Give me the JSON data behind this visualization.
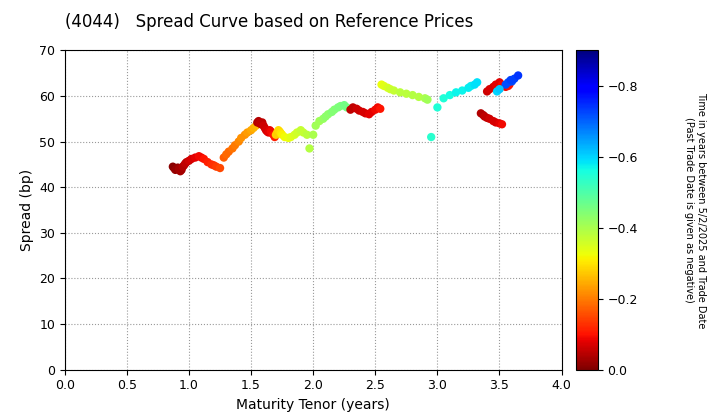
{
  "title": "(4044)   Spread Curve based on Reference Prices",
  "xlabel": "Maturity Tenor (years)",
  "ylabel": "Spread (bp)",
  "colorbar_label_line1": "Time in years between 5/2/2025 and Trade Date",
  "colorbar_label_line2": "(Past Trade Date is given as negative)",
  "xlim": [
    0.0,
    4.0
  ],
  "ylim": [
    0,
    70
  ],
  "xticks": [
    0.0,
    0.5,
    1.0,
    1.5,
    2.0,
    2.5,
    3.0,
    3.5,
    4.0
  ],
  "yticks": [
    0,
    10,
    20,
    30,
    40,
    50,
    60,
    70
  ],
  "cmap": "jet",
  "vmin": -0.9,
  "vmax": 0.0,
  "colorbar_ticks": [
    0.0,
    -0.2,
    -0.4,
    -0.6,
    -0.8
  ],
  "points": [
    [
      0.87,
      44.5,
      -0.01
    ],
    [
      0.88,
      44.2,
      -0.01
    ],
    [
      0.89,
      43.8,
      -0.02
    ],
    [
      0.9,
      44.0,
      -0.02
    ],
    [
      0.91,
      44.3,
      -0.02
    ],
    [
      0.92,
      44.0,
      -0.03
    ],
    [
      0.93,
      43.5,
      -0.03
    ],
    [
      0.94,
      43.8,
      -0.03
    ],
    [
      0.95,
      44.5,
      -0.04
    ],
    [
      0.96,
      44.8,
      -0.04
    ],
    [
      0.97,
      45.2,
      -0.05
    ],
    [
      0.98,
      45.5,
      -0.05
    ],
    [
      1.0,
      45.8,
      -0.06
    ],
    [
      1.02,
      46.2,
      -0.07
    ],
    [
      1.05,
      46.5,
      -0.08
    ],
    [
      1.08,
      46.8,
      -0.09
    ],
    [
      1.1,
      46.5,
      -0.09
    ],
    [
      1.12,
      46.2,
      -0.1
    ],
    [
      1.15,
      45.5,
      -0.11
    ],
    [
      1.18,
      45.0,
      -0.12
    ],
    [
      1.2,
      44.8,
      -0.13
    ],
    [
      1.22,
      44.5,
      -0.14
    ],
    [
      1.25,
      44.2,
      -0.15
    ],
    [
      1.28,
      46.5,
      -0.17
    ],
    [
      1.3,
      47.2,
      -0.18
    ],
    [
      1.32,
      47.8,
      -0.18
    ],
    [
      1.35,
      48.5,
      -0.19
    ],
    [
      1.37,
      49.2,
      -0.2
    ],
    [
      1.4,
      50.0,
      -0.21
    ],
    [
      1.42,
      50.8,
      -0.22
    ],
    [
      1.45,
      51.5,
      -0.22
    ],
    [
      1.47,
      52.0,
      -0.23
    ],
    [
      1.5,
      52.5,
      -0.24
    ],
    [
      1.52,
      53.0,
      -0.25
    ],
    [
      1.54,
      53.5,
      -0.26
    ],
    [
      1.55,
      54.2,
      -0.04
    ],
    [
      1.56,
      54.5,
      -0.04
    ],
    [
      1.57,
      54.0,
      -0.05
    ],
    [
      1.58,
      53.8,
      -0.05
    ],
    [
      1.59,
      54.2,
      -0.05
    ],
    [
      1.6,
      53.5,
      -0.06
    ],
    [
      1.61,
      53.0,
      -0.06
    ],
    [
      1.62,
      52.5,
      -0.07
    ],
    [
      1.63,
      52.2,
      -0.07
    ],
    [
      1.64,
      52.0,
      -0.08
    ],
    [
      1.65,
      52.5,
      -0.08
    ],
    [
      1.66,
      52.2,
      -0.09
    ],
    [
      1.67,
      51.8,
      -0.09
    ],
    [
      1.68,
      51.5,
      -0.1
    ],
    [
      1.69,
      51.0,
      -0.11
    ],
    [
      1.7,
      51.5,
      -0.28
    ],
    [
      1.71,
      52.0,
      -0.28
    ],
    [
      1.72,
      52.5,
      -0.29
    ],
    [
      1.73,
      52.2,
      -0.29
    ],
    [
      1.74,
      51.8,
      -0.3
    ],
    [
      1.75,
      51.5,
      -0.31
    ],
    [
      1.77,
      51.0,
      -0.32
    ],
    [
      1.8,
      50.8,
      -0.33
    ],
    [
      1.82,
      51.0,
      -0.34
    ],
    [
      1.85,
      51.5,
      -0.35
    ],
    [
      1.87,
      52.0,
      -0.36
    ],
    [
      1.9,
      52.5,
      -0.37
    ],
    [
      1.92,
      52.0,
      -0.37
    ],
    [
      1.95,
      51.5,
      -0.38
    ],
    [
      1.97,
      48.5,
      -0.39
    ],
    [
      2.0,
      51.5,
      -0.4
    ],
    [
      2.02,
      53.5,
      -0.41
    ],
    [
      2.05,
      54.5,
      -0.41
    ],
    [
      2.08,
      55.0,
      -0.42
    ],
    [
      2.1,
      55.5,
      -0.43
    ],
    [
      2.12,
      56.0,
      -0.43
    ],
    [
      2.15,
      56.5,
      -0.44
    ],
    [
      2.17,
      57.0,
      -0.44
    ],
    [
      2.2,
      57.5,
      -0.45
    ],
    [
      2.22,
      57.8,
      -0.45
    ],
    [
      2.25,
      58.0,
      -0.46
    ],
    [
      2.27,
      57.5,
      -0.46
    ],
    [
      2.3,
      57.0,
      -0.05
    ],
    [
      2.32,
      57.5,
      -0.05
    ],
    [
      2.35,
      57.2,
      -0.06
    ],
    [
      2.37,
      56.8,
      -0.06
    ],
    [
      2.4,
      56.5,
      -0.07
    ],
    [
      2.42,
      56.2,
      -0.07
    ],
    [
      2.45,
      56.0,
      -0.08
    ],
    [
      2.47,
      56.5,
      -0.08
    ],
    [
      2.5,
      57.0,
      -0.09
    ],
    [
      2.52,
      57.5,
      -0.09
    ],
    [
      2.54,
      57.2,
      -0.1
    ],
    [
      2.55,
      62.5,
      -0.33
    ],
    [
      2.57,
      62.2,
      -0.34
    ],
    [
      2.6,
      61.8,
      -0.35
    ],
    [
      2.62,
      61.5,
      -0.36
    ],
    [
      2.65,
      61.2,
      -0.37
    ],
    [
      2.7,
      60.8,
      -0.38
    ],
    [
      2.75,
      60.5,
      -0.38
    ],
    [
      2.8,
      60.2,
      -0.39
    ],
    [
      2.85,
      59.8,
      -0.39
    ],
    [
      2.9,
      59.5,
      -0.4
    ],
    [
      2.92,
      59.2,
      -0.41
    ],
    [
      2.95,
      51.0,
      -0.54
    ],
    [
      3.0,
      57.5,
      -0.55
    ],
    [
      3.05,
      59.5,
      -0.55
    ],
    [
      3.1,
      60.2,
      -0.56
    ],
    [
      3.15,
      60.8,
      -0.57
    ],
    [
      3.2,
      61.2,
      -0.57
    ],
    [
      3.25,
      61.8,
      -0.58
    ],
    [
      3.27,
      62.2,
      -0.58
    ],
    [
      3.3,
      62.5,
      -0.59
    ],
    [
      3.32,
      63.0,
      -0.59
    ],
    [
      3.35,
      56.2,
      -0.04
    ],
    [
      3.37,
      55.8,
      -0.04
    ],
    [
      3.38,
      55.5,
      -0.05
    ],
    [
      3.4,
      55.2,
      -0.05
    ],
    [
      3.42,
      55.0,
      -0.06
    ],
    [
      3.45,
      54.5,
      -0.07
    ],
    [
      3.47,
      54.2,
      -0.07
    ],
    [
      3.5,
      54.0,
      -0.08
    ],
    [
      3.52,
      53.8,
      -0.09
    ],
    [
      3.4,
      61.0,
      -0.06
    ],
    [
      3.42,
      61.5,
      -0.07
    ],
    [
      3.45,
      62.0,
      -0.07
    ],
    [
      3.47,
      62.5,
      -0.08
    ],
    [
      3.5,
      63.0,
      -0.08
    ],
    [
      3.52,
      62.5,
      -0.09
    ],
    [
      3.55,
      62.0,
      -0.09
    ],
    [
      3.57,
      62.2,
      -0.1
    ],
    [
      3.58,
      62.5,
      -0.1
    ],
    [
      3.6,
      63.2,
      -0.72
    ],
    [
      3.62,
      63.8,
      -0.73
    ],
    [
      3.65,
      64.5,
      -0.74
    ],
    [
      3.55,
      62.5,
      -0.72
    ],
    [
      3.57,
      63.0,
      -0.72
    ],
    [
      3.59,
      63.5,
      -0.73
    ],
    [
      3.48,
      61.0,
      -0.6
    ],
    [
      3.5,
      61.5,
      -0.61
    ]
  ],
  "marker_size": 36,
  "background_color": "#ffffff",
  "grid_color": "#999999",
  "title_fontsize": 12,
  "axis_fontsize": 10,
  "tick_fontsize": 9,
  "colorbar_fontsize": 9
}
